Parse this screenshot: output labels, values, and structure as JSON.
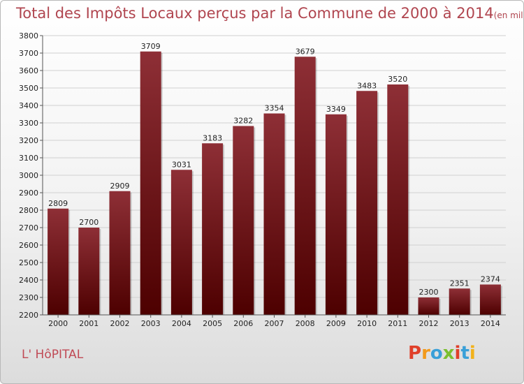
{
  "title": "Total des Impôts Locaux perçus par la Commune de 2000 à 2014",
  "title_unit": "(en milliers d'€)",
  "commune": "L' HôPITAL",
  "logo": {
    "letters": [
      "P",
      "r",
      "o",
      "x",
      "i",
      "t",
      "i"
    ],
    "colors": [
      "#e0402a",
      "#f29a1c",
      "#3aa0d8",
      "#7bbf2f",
      "#e0402a",
      "#3aa0d8",
      "#f2b21c"
    ]
  },
  "colors": {
    "bar_top": "#8e2f36",
    "bar_bottom": "#4d0000",
    "grid": "#d0d0d0"
  },
  "chart_data": {
    "type": "bar",
    "categories": [
      "2000",
      "2001",
      "2002",
      "2003",
      "2004",
      "2005",
      "2006",
      "2007",
      "2008",
      "2009",
      "2010",
      "2011",
      "2012",
      "2013",
      "2014"
    ],
    "values": [
      2809,
      2700,
      2909,
      3709,
      3031,
      3183,
      3282,
      3354,
      3679,
      3349,
      3483,
      3520,
      2300,
      2351,
      2374
    ],
    "ylim": [
      2200,
      3800
    ],
    "yticks": [
      2200,
      2300,
      2400,
      2500,
      2600,
      2700,
      2800,
      2900,
      3000,
      3100,
      3200,
      3300,
      3400,
      3500,
      3600,
      3700,
      3800
    ],
    "grid": true
  }
}
